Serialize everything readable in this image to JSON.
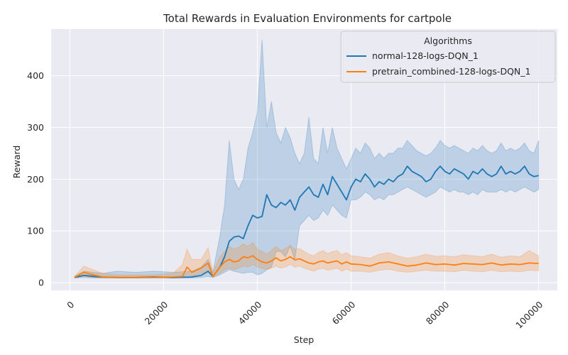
{
  "chart_data": {
    "type": "line",
    "title": "Total Rewards in Evaluation Environments for cartpole",
    "xlabel": "Step",
    "ylabel": "Reward",
    "xlim": [
      -4000,
      104000
    ],
    "ylim": [
      -15,
      490
    ],
    "xticks": [
      0,
      20000,
      40000,
      60000,
      80000,
      100000
    ],
    "yticks": [
      0,
      100,
      200,
      300,
      400
    ],
    "grid": true,
    "legend": {
      "title": "Algorithms",
      "placement": "top-right"
    },
    "colors": {
      "normal": "#1f77b4",
      "pretrain": "#ff7f0e",
      "plot_bg": "#eaeaf2",
      "grid": "#ffffff"
    },
    "series": [
      {
        "name": "normal-128-logs-DQN_1",
        "color": "#1f77b4",
        "x": [
          1000,
          3000,
          5000,
          7000,
          10000,
          14000,
          18000,
          22000,
          26000,
          28000,
          29500,
          30500,
          32000,
          33000,
          34000,
          35000,
          36000,
          37000,
          38000,
          39000,
          40000,
          41000,
          42000,
          43000,
          44000,
          45000,
          46000,
          47000,
          48000,
          49000,
          50000,
          51000,
          52000,
          53000,
          54000,
          55000,
          56000,
          57000,
          58000,
          59000,
          60000,
          61000,
          62000,
          63000,
          64000,
          65000,
          66000,
          67000,
          68000,
          69000,
          70000,
          71000,
          72000,
          73000,
          74000,
          75000,
          76000,
          77000,
          78000,
          79000,
          80000,
          81000,
          82000,
          83000,
          84000,
          85000,
          86000,
          87000,
          88000,
          89000,
          90000,
          91000,
          92000,
          93000,
          94000,
          95000,
          96000,
          97000,
          98000,
          99000,
          100000
        ],
        "y": [
          10,
          14,
          12,
          11,
          10,
          10,
          11,
          10,
          11,
          14,
          22,
          12,
          30,
          50,
          80,
          88,
          90,
          85,
          110,
          130,
          125,
          128,
          170,
          150,
          145,
          155,
          150,
          160,
          140,
          165,
          175,
          185,
          170,
          165,
          190,
          170,
          205,
          190,
          175,
          160,
          185,
          200,
          195,
          210,
          200,
          185,
          195,
          190,
          200,
          195,
          205,
          210,
          225,
          215,
          210,
          205,
          195,
          200,
          215,
          225,
          215,
          210,
          220,
          215,
          210,
          200,
          215,
          210,
          220,
          210,
          205,
          210,
          225,
          210,
          215,
          210,
          215,
          225,
          210,
          205,
          207
        ],
        "lower": [
          9,
          10,
          9,
          9,
          9,
          9,
          9,
          9,
          9,
          10,
          12,
          10,
          15,
          20,
          25,
          22,
          20,
          18,
          20,
          20,
          15,
          18,
          25,
          30,
          60,
          60,
          50,
          70,
          45,
          110,
          120,
          130,
          120,
          125,
          140,
          130,
          150,
          140,
          130,
          125,
          160,
          160,
          165,
          175,
          170,
          160,
          165,
          160,
          170,
          170,
          175,
          180,
          185,
          180,
          175,
          170,
          165,
          170,
          175,
          185,
          180,
          175,
          180,
          175,
          175,
          170,
          175,
          170,
          180,
          175,
          175,
          175,
          180,
          175,
          180,
          175,
          180,
          185,
          180,
          175,
          180
        ],
        "upper": [
          12,
          22,
          20,
          18,
          22,
          20,
          22,
          20,
          22,
          30,
          45,
          20,
          90,
          150,
          275,
          200,
          180,
          200,
          260,
          290,
          330,
          470,
          300,
          350,
          290,
          270,
          300,
          280,
          250,
          230,
          250,
          320,
          240,
          230,
          300,
          250,
          300,
          260,
          240,
          220,
          240,
          260,
          250,
          270,
          260,
          240,
          250,
          240,
          250,
          250,
          260,
          260,
          275,
          265,
          255,
          250,
          245,
          250,
          260,
          275,
          265,
          260,
          265,
          260,
          255,
          250,
          260,
          255,
          265,
          255,
          250,
          255,
          270,
          255,
          260,
          255,
          260,
          270,
          255,
          250,
          275
        ]
      },
      {
        "name": "pretrain_combined-128-logs-DQN_1",
        "color": "#ff7f0e",
        "x": [
          1000,
          3000,
          5000,
          7000,
          10000,
          14000,
          18000,
          22000,
          24000,
          25000,
          26000,
          28000,
          29500,
          30500,
          32000,
          33000,
          34000,
          35000,
          36000,
          37000,
          38000,
          39000,
          40000,
          41000,
          42000,
          43000,
          44000,
          45000,
          46000,
          47000,
          48000,
          49000,
          50000,
          51000,
          52000,
          53000,
          54000,
          55000,
          56000,
          57000,
          58000,
          59000,
          60000,
          62000,
          64000,
          66000,
          68000,
          70000,
          72000,
          74000,
          76000,
          78000,
          80000,
          82000,
          84000,
          86000,
          88000,
          90000,
          92000,
          94000,
          96000,
          98000,
          100000
        ],
        "y": [
          10,
          20,
          15,
          11,
          10,
          10,
          10,
          11,
          12,
          30,
          20,
          28,
          38,
          12,
          30,
          40,
          45,
          40,
          42,
          50,
          48,
          52,
          45,
          40,
          38,
          42,
          48,
          42,
          45,
          50,
          44,
          46,
          42,
          38,
          36,
          40,
          42,
          38,
          40,
          42,
          36,
          40,
          36,
          35,
          32,
          38,
          40,
          36,
          32,
          34,
          38,
          35,
          36,
          34,
          37,
          36,
          35,
          38,
          34,
          36,
          35,
          38,
          37
        ],
        "lower": [
          9,
          12,
          10,
          9,
          9,
          9,
          9,
          9,
          10,
          15,
          12,
          18,
          20,
          10,
          18,
          25,
          28,
          25,
          28,
          32,
          30,
          35,
          30,
          28,
          25,
          28,
          32,
          28,
          30,
          35,
          30,
          32,
          28,
          25,
          22,
          26,
          28,
          24,
          26,
          28,
          22,
          26,
          22,
          22,
          20,
          24,
          26,
          22,
          20,
          22,
          24,
          22,
          22,
          21,
          24,
          22,
          21,
          24,
          21,
          22,
          21,
          24,
          23
        ],
        "upper": [
          12,
          32,
          25,
          18,
          15,
          15,
          15,
          18,
          35,
          65,
          45,
          45,
          68,
          20,
          50,
          60,
          70,
          65,
          68,
          75,
          70,
          78,
          65,
          60,
          55,
          62,
          70,
          62,
          66,
          72,
          64,
          66,
          60,
          55,
          52,
          58,
          62,
          56,
          60,
          62,
          54,
          58,
          52,
          50,
          47,
          55,
          58,
          52,
          47,
          50,
          55,
          51,
          52,
          50,
          54,
          52,
          50,
          55,
          49,
          52,
          50,
          62,
          52
        ]
      }
    ]
  }
}
